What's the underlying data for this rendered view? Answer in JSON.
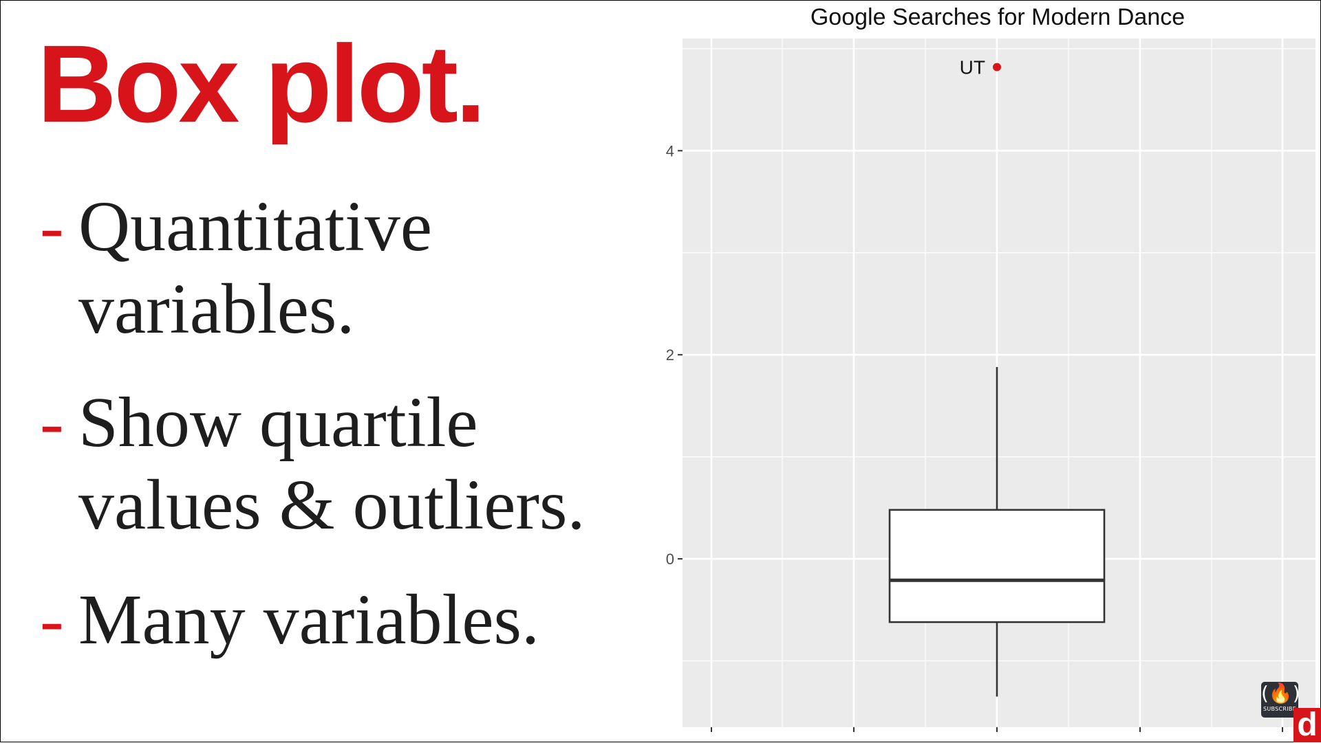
{
  "slide": {
    "title": "Box plot.",
    "bullets": [
      {
        "dash": "-",
        "lines": [
          "Quantitative",
          "variables."
        ]
      },
      {
        "dash": "-",
        "lines": [
          "Show quartile",
          "values & outliers."
        ]
      },
      {
        "dash": "-",
        "lines": [
          "Many variables."
        ]
      }
    ]
  },
  "chart_data": {
    "type": "box",
    "title": "Google Searches for Modern Dance",
    "xlabel": "",
    "ylabel": "",
    "ylim": [
      -1.65,
      5.1
    ],
    "yticks": [
      0,
      2,
      4
    ],
    "grid": true,
    "box": {
      "whisker_low": -1.35,
      "q1": -0.62,
      "median": -0.21,
      "q3": 0.48,
      "whisker_high": 1.88
    },
    "outliers": [
      {
        "label": "UT",
        "value": 4.82
      }
    ],
    "colors": {
      "panel": "#ebebeb",
      "gridline": "#ffffff",
      "box_fill": "#ffffff",
      "box_stroke": "#333333",
      "outlier": "#d7141a",
      "accent": "#d7141a"
    }
  },
  "overlays": {
    "subscribe_label": "SUBSCRIBE",
    "subscribe_icon": "flame-icon",
    "channel_logo": "d"
  }
}
